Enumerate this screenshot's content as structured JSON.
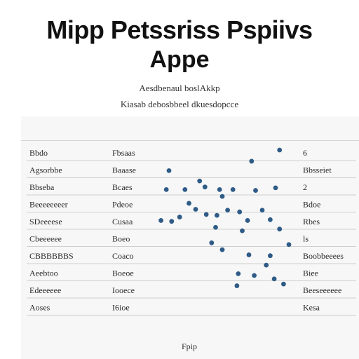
{
  "header": {
    "title_line1": "Mipp Petssriss Pspiivs",
    "title_line2": "Appe",
    "subtitle_line1": "Aesdbenaul boslAkkp",
    "subtitle_line2": "Kiasab debosbbeel dkuesdopcce"
  },
  "chart_data": {
    "type": "scatter",
    "rows": [
      {
        "left": "Bbdo",
        "mid": "Fbsaas",
        "right": "6"
      },
      {
        "left": "Agsorbbe",
        "mid": "Baaase",
        "right": "Bbsseiet"
      },
      {
        "left": "Bbseba",
        "mid": "Bcaes",
        "right": "2"
      },
      {
        "left": "Beeeeeeeer",
        "mid": "Pdeoe",
        "right": "Bdoe"
      },
      {
        "left": "SDeeeese",
        "mid": "Cusaa",
        "right": "Rbes"
      },
      {
        "left": "Cbeeeeee",
        "mid": "Boeo",
        "right": "ls"
      },
      {
        "left": "CBBBBBBS",
        "mid": "Coaco",
        "right": "Boobbeeees"
      },
      {
        "left": "Aeebtoo",
        "mid": "Boeoe",
        "right": "Biee"
      },
      {
        "left": "Edeeeeee",
        "mid": "Iooece",
        "right": "Beeseeeeee"
      },
      {
        "left": "Aoses",
        "mid": "I6ioe",
        "right": "Kesa"
      }
    ],
    "points": [
      {
        "x": 0.93,
        "y": 0
      },
      {
        "x": 0.72,
        "y": 0.65
      },
      {
        "x": 0.1,
        "y": 1.2
      },
      {
        "x": 0.33,
        "y": 1.8
      },
      {
        "x": 0.37,
        "y": 2.15
      },
      {
        "x": 0.08,
        "y": 2.3
      },
      {
        "x": 0.22,
        "y": 2.3
      },
      {
        "x": 0.48,
        "y": 2.3
      },
      {
        "x": 0.58,
        "y": 2.3
      },
      {
        "x": 0.75,
        "y": 2.35
      },
      {
        "x": 0.9,
        "y": 2.2
      },
      {
        "x": 0.5,
        "y": 2.7
      },
      {
        "x": 0.25,
        "y": 3.1
      },
      {
        "x": 0.3,
        "y": 3.45
      },
      {
        "x": 0.54,
        "y": 3.5
      },
      {
        "x": 0.63,
        "y": 3.6
      },
      {
        "x": 0.8,
        "y": 3.5
      },
      {
        "x": 0.04,
        "y": 4.1
      },
      {
        "x": 0.12,
        "y": 4.15
      },
      {
        "x": 0.18,
        "y": 3.9
      },
      {
        "x": 0.38,
        "y": 3.75
      },
      {
        "x": 0.46,
        "y": 3.8
      },
      {
        "x": 0.69,
        "y": 4.1
      },
      {
        "x": 0.86,
        "y": 4.05
      },
      {
        "x": 0.45,
        "y": 4.5
      },
      {
        "x": 0.65,
        "y": 4.7
      },
      {
        "x": 0.93,
        "y": 4.6
      },
      {
        "x": 0.42,
        "y": 5.4
      },
      {
        "x": 0.5,
        "y": 5.8
      },
      {
        "x": 1.0,
        "y": 5.5
      },
      {
        "x": 0.7,
        "y": 6.1
      },
      {
        "x": 0.86,
        "y": 6.15
      },
      {
        "x": 0.83,
        "y": 6.7
      },
      {
        "x": 0.62,
        "y": 7.2
      },
      {
        "x": 0.74,
        "y": 7.3
      },
      {
        "x": 0.89,
        "y": 7.5
      },
      {
        "x": 0.61,
        "y": 7.9
      },
      {
        "x": 0.96,
        "y": 7.8
      }
    ],
    "footer_label": "Fpip",
    "colors": {
      "point": "#2f5b86",
      "rule": "#cfcfcf",
      "panel": "#f7f7f7"
    }
  }
}
